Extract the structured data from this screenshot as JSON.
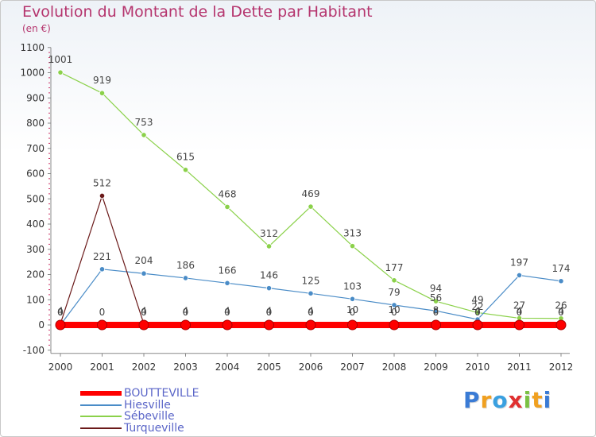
{
  "title": "Evolution du Montant de la Dette par Habitant",
  "subtitle": "(en €)",
  "chart_data": {
    "type": "line",
    "title": "Evolution du Montant de la Dette par Habitant",
    "ylabel": "(en €)",
    "xlabel": "",
    "x": [
      "2000",
      "2001",
      "2002",
      "2003",
      "2004",
      "2005",
      "2006",
      "2007",
      "2008",
      "2009",
      "2010",
      "2011",
      "2012"
    ],
    "ylim": [
      -100,
      1100
    ],
    "yticks": [
      -100,
      0,
      100,
      200,
      300,
      400,
      500,
      600,
      700,
      800,
      900,
      1000,
      1100
    ],
    "grid": false,
    "legend_position": "bottom-left",
    "series": [
      {
        "name": "BOUTTEVILLE",
        "color": "#ff0000",
        "values": [
          0,
          0,
          0,
          0,
          0,
          0,
          0,
          0,
          0,
          0,
          0,
          0,
          0
        ],
        "labels": [
          "0",
          "0",
          "0",
          "0",
          "0",
          "0",
          "0",
          "0",
          "0",
          "0",
          "0",
          "0",
          "0"
        ]
      },
      {
        "name": "Hiesville",
        "color": "#4a8cc7",
        "values": [
          0,
          221,
          204,
          186,
          166,
          146,
          125,
          103,
          79,
          56,
          22,
          197,
          174
        ],
        "labels": [
          "0",
          "221",
          "204",
          "186",
          "166",
          "146",
          "125",
          "103",
          "79",
          "56",
          "22",
          "197",
          "174"
        ]
      },
      {
        "name": "Sébeville",
        "color": "#8bd14a",
        "values": [
          1001,
          919,
          753,
          615,
          468,
          312,
          469,
          313,
          177,
          94,
          49,
          27,
          26
        ],
        "labels": [
          "1001",
          "919",
          "753",
          "615",
          "468",
          "312",
          "469",
          "313",
          "177",
          "94",
          "49",
          "27",
          "26"
        ]
      },
      {
        "name": "Turqueville",
        "color": "#6b1a1a",
        "values": [
          4,
          512,
          4,
          4,
          4,
          4,
          4,
          10,
          10,
          8,
          4,
          4,
          4
        ],
        "labels": [
          "4",
          "512",
          "4",
          "4",
          "4",
          "4",
          "4",
          "10",
          "10",
          "8",
          "4",
          "4",
          "4"
        ]
      }
    ]
  },
  "legend": {
    "items": [
      {
        "label": "BOUTTEVILLE",
        "color": "#ff0000"
      },
      {
        "label": "Hiesville",
        "color": "#4a8cc7"
      },
      {
        "label": "Sébeville",
        "color": "#8bd14a"
      },
      {
        "label": "Turqueville",
        "color": "#6b1a1a"
      }
    ]
  },
  "logo": {
    "text": "Proxiti",
    "letters": [
      {
        "ch": "P",
        "color": "#3a7bd5"
      },
      {
        "ch": "r",
        "color": "#f0a020"
      },
      {
        "ch": "o",
        "color": "#3aa0e0"
      },
      {
        "ch": "x",
        "color": "#e03030"
      },
      {
        "ch": "i",
        "color": "#7ac143"
      },
      {
        "ch": "t",
        "color": "#f0a020"
      },
      {
        "ch": "i",
        "color": "#3a7bd5"
      }
    ]
  }
}
